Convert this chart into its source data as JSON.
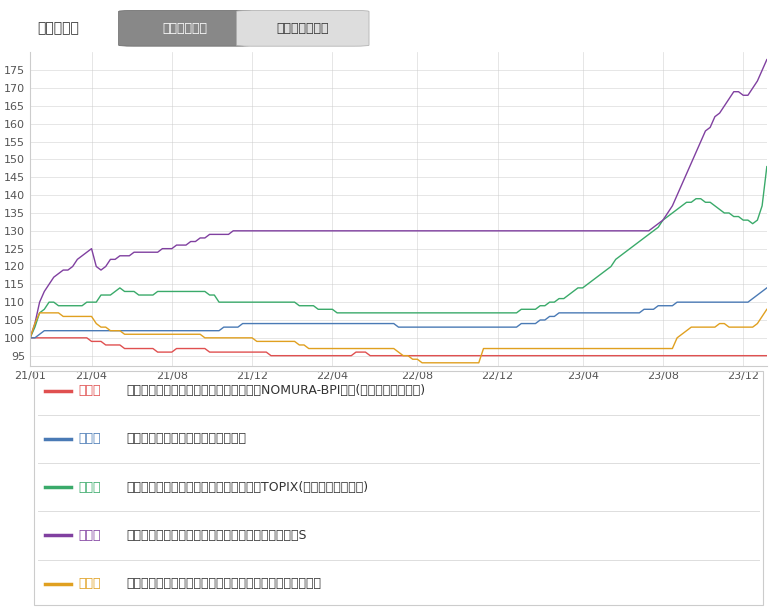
{
  "title": "表示期間：　３年（週次）　　１０年（月次）",
  "background_color": "#ffffff",
  "plot_background": "#ffffff",
  "grid_color": "#cccccc",
  "ylim": [
    92,
    180
  ],
  "yticks": [
    95,
    100,
    105,
    110,
    115,
    120,
    125,
    130,
    135,
    140,
    145,
    150,
    155,
    160,
    165,
    170,
    175
  ],
  "xtick_labels": [
    "21/01",
    "21/04",
    "21/08",
    "21/12",
    "22/04",
    "22/08",
    "22/12",
    "23/04",
    "23/08",
    "23/12"
  ],
  "series": {
    "red": {
      "label": "赤線：　野村国内債券インデックスファンド・NOMURA-BPI総合(確定拠出年金向け)",
      "color": "#e05050",
      "values": [
        100,
        100,
        100,
        100,
        100,
        100,
        100,
        100,
        100,
        100,
        100,
        100,
        100,
        99,
        99,
        99,
        98,
        98,
        98,
        98,
        97,
        97,
        97,
        97,
        97,
        97,
        97,
        96,
        96,
        96,
        96,
        97,
        97,
        97,
        97,
        97,
        97,
        97,
        96,
        96,
        96,
        96,
        96,
        96,
        96,
        96,
        96,
        96,
        96,
        96,
        96,
        95,
        95,
        95,
        95,
        95,
        95,
        95,
        95,
        95,
        95,
        95,
        95,
        95,
        95,
        95,
        95,
        95,
        95,
        96,
        96,
        96,
        95,
        95,
        95,
        95,
        95,
        95,
        95,
        95,
        95,
        95,
        95,
        95,
        95,
        95,
        95,
        95,
        95,
        95,
        95,
        95,
        95,
        95,
        95,
        95,
        95,
        95,
        95,
        95,
        95,
        95,
        95,
        95,
        95,
        95,
        95,
        95,
        95,
        95,
        95,
        95,
        95,
        95,
        95,
        95,
        95,
        95,
        95,
        95,
        95,
        95,
        95,
        95,
        95,
        95,
        95,
        95,
        95,
        95,
        95,
        95,
        95,
        95,
        95,
        95,
        95,
        95,
        95,
        95,
        95,
        95,
        95,
        95,
        95,
        95,
        95,
        95,
        95,
        95,
        95,
        95,
        95,
        95,
        95,
        95,
        95
      ]
    },
    "blue": {
      "label": "青線：　ＤＣダイワ外国債券インデックス",
      "color": "#4a7ab5",
      "values": [
        100,
        100,
        101,
        102,
        102,
        102,
        102,
        102,
        102,
        102,
        102,
        102,
        102,
        102,
        102,
        102,
        102,
        102,
        102,
        102,
        102,
        102,
        102,
        102,
        102,
        102,
        102,
        102,
        102,
        102,
        102,
        102,
        102,
        102,
        102,
        102,
        102,
        102,
        102,
        102,
        102,
        103,
        103,
        103,
        103,
        104,
        104,
        104,
        104,
        104,
        104,
        104,
        104,
        104,
        104,
        104,
        104,
        104,
        104,
        104,
        104,
        104,
        104,
        104,
        104,
        104,
        104,
        104,
        104,
        104,
        104,
        104,
        104,
        104,
        104,
        104,
        104,
        104,
        103,
        103,
        103,
        103,
        103,
        103,
        103,
        103,
        103,
        103,
        103,
        103,
        103,
        103,
        103,
        103,
        103,
        103,
        103,
        103,
        103,
        103,
        103,
        103,
        103,
        103,
        104,
        104,
        104,
        104,
        105,
        105,
        106,
        106,
        107,
        107,
        107,
        107,
        107,
        107,
        107,
        107,
        107,
        107,
        107,
        107,
        107,
        107,
        107,
        107,
        107,
        107,
        108,
        108,
        108,
        109,
        109,
        109,
        109,
        110,
        110,
        110,
        110,
        110,
        110,
        110,
        110,
        110,
        110,
        110,
        110,
        110,
        110,
        110,
        110,
        111,
        112,
        113,
        114
      ]
    },
    "green": {
      "label": "緑線：　野村国内株式インデックスファンド・TOPIX(確定拠出年金向け)",
      "color": "#3aaa6a",
      "values": [
        100,
        103,
        107,
        108,
        110,
        110,
        109,
        109,
        109,
        109,
        109,
        109,
        110,
        110,
        110,
        112,
        112,
        112,
        113,
        114,
        113,
        113,
        113,
        112,
        112,
        112,
        112,
        113,
        113,
        113,
        113,
        113,
        113,
        113,
        113,
        113,
        113,
        113,
        112,
        112,
        110,
        110,
        110,
        110,
        110,
        110,
        110,
        110,
        110,
        110,
        110,
        110,
        110,
        110,
        110,
        110,
        110,
        109,
        109,
        109,
        109,
        108,
        108,
        108,
        108,
        107,
        107,
        107,
        107,
        107,
        107,
        107,
        107,
        107,
        107,
        107,
        107,
        107,
        107,
        107,
        107,
        107,
        107,
        107,
        107,
        107,
        107,
        107,
        107,
        107,
        107,
        107,
        107,
        107,
        107,
        107,
        107,
        107,
        107,
        107,
        107,
        107,
        107,
        107,
        108,
        108,
        108,
        108,
        109,
        109,
        110,
        110,
        111,
        111,
        112,
        113,
        114,
        114,
        115,
        116,
        117,
        118,
        119,
        120,
        122,
        123,
        124,
        125,
        126,
        127,
        128,
        129,
        130,
        131,
        133,
        134,
        135,
        136,
        137,
        138,
        138,
        139,
        139,
        138,
        138,
        137,
        136,
        135,
        135,
        134,
        134,
        133,
        133,
        132,
        133,
        137,
        148
      ]
    },
    "purple": {
      "label": "紫線：　みずほ信託銀行　外国株式インデックスファンドS",
      "color": "#8040a0",
      "values": [
        100,
        104,
        110,
        113,
        115,
        117,
        118,
        119,
        119,
        120,
        122,
        123,
        124,
        125,
        120,
        119,
        120,
        122,
        122,
        123,
        123,
        123,
        124,
        124,
        124,
        124,
        124,
        124,
        125,
        125,
        125,
        126,
        126,
        126,
        127,
        127,
        128,
        128,
        129,
        129,
        129,
        129,
        129,
        130,
        130,
        130,
        130,
        130,
        130,
        130,
        130,
        130,
        130,
        130,
        130,
        130,
        130,
        130,
        130,
        130,
        130,
        130,
        130,
        130,
        130,
        130,
        130,
        130,
        130,
        130,
        130,
        130,
        130,
        130,
        130,
        130,
        130,
        130,
        130,
        130,
        130,
        130,
        130,
        130,
        130,
        130,
        130,
        130,
        130,
        130,
        130,
        130,
        130,
        130,
        130,
        130,
        130,
        130,
        130,
        130,
        130,
        130,
        130,
        130,
        130,
        130,
        130,
        130,
        130,
        130,
        130,
        130,
        130,
        130,
        130,
        130,
        130,
        130,
        130,
        130,
        130,
        130,
        130,
        130,
        130,
        130,
        130,
        130,
        130,
        130,
        130,
        130,
        131,
        132,
        133,
        135,
        137,
        140,
        143,
        146,
        149,
        152,
        155,
        158,
        159,
        162,
        163,
        165,
        167,
        169,
        169,
        168,
        168,
        170,
        172,
        175,
        178
      ]
    },
    "yellow": {
      "label": "黄線：　ＤＩＡＭ新興国株式インデックスファンド＜ＤＣ年金＞",
      "color": "#e0a020",
      "values": [
        100,
        104,
        107,
        107,
        107,
        107,
        107,
        106,
        106,
        106,
        106,
        106,
        106,
        106,
        104,
        103,
        103,
        102,
        102,
        102,
        101,
        101,
        101,
        101,
        101,
        101,
        101,
        101,
        101,
        101,
        101,
        101,
        101,
        101,
        101,
        101,
        101,
        100,
        100,
        100,
        100,
        100,
        100,
        100,
        100,
        100,
        100,
        100,
        99,
        99,
        99,
        99,
        99,
        99,
        99,
        99,
        99,
        98,
        98,
        97,
        97,
        97,
        97,
        97,
        97,
        97,
        97,
        97,
        97,
        97,
        97,
        97,
        97,
        97,
        97,
        97,
        97,
        97,
        96,
        95,
        95,
        94,
        94,
        93,
        93,
        93,
        93,
        93,
        93,
        93,
        93,
        93,
        93,
        93,
        93,
        93,
        97,
        97,
        97,
        97,
        97,
        97,
        97,
        97,
        97,
        97,
        97,
        97,
        97,
        97,
        97,
        97,
        97,
        97,
        97,
        97,
        97,
        97,
        97,
        97,
        97,
        97,
        97,
        97,
        97,
        97,
        97,
        97,
        97,
        97,
        97,
        97,
        97,
        97,
        97,
        97,
        97,
        100,
        101,
        102,
        103,
        103,
        103,
        103,
        103,
        103,
        104,
        104,
        103,
        103,
        103,
        103,
        103,
        103,
        104,
        106,
        108
      ]
    }
  },
  "legend_items": [
    {
      "color": "#e05050",
      "label_color": "#e05050",
      "text_color": "#e05050",
      "key": "赤線",
      "desc": "　野村国内債券インデックスファンド・NOMURA-BPI総合(確定拠出年金向け)"
    },
    {
      "color": "#4a7ab5",
      "label_color": "#4a7ab5",
      "text_color": "#4a7ab5",
      "key": "青線",
      "desc": "　ＤＣダイワ外国債券インデックス"
    },
    {
      "color": "#3aaa6a",
      "label_color": "#3aaa6a",
      "text_color": "#3aaa6a",
      "key": "緑線",
      "desc": "　野村国内株式インデックスファンド・TOPIX(確定拠出年金向け)"
    },
    {
      "color": "#8040a0",
      "label_color": "#8040a0",
      "text_color": "#8040a0",
      "key": "紫線",
      "desc": "　みずほ信託銀行　外国株式インデックスファンドS"
    },
    {
      "color": "#e0a020",
      "label_color": "#e0a020",
      "text_color": "#e0a020",
      "key": "黄線",
      "desc": "　ＤＩＡＭ新興国株式インデックスファンド＜ＤＣ年金＞"
    }
  ],
  "header_text": "表示期間：",
  "btn1_text": "３年（週次）",
  "btn2_text": "１０年（月次）",
  "btn1_color": "#888888",
  "btn2_color": "#cccccc"
}
